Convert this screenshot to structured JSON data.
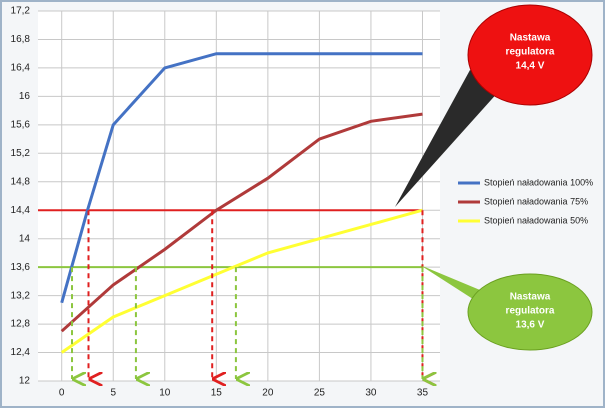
{
  "chart_data": {
    "type": "line",
    "xlim": [
      -2.3,
      36.7
    ],
    "xticks": [
      0,
      5,
      10,
      15,
      20,
      25,
      30,
      35
    ],
    "ylim": [
      12,
      17.2
    ],
    "yticks": [
      12,
      {
        "value": 12.4,
        "label": "12,4"
      },
      {
        "value": 12.8,
        "label": "12,8"
      },
      {
        "value": 13.2,
        "label": "13,2"
      },
      {
        "value": 13.6,
        "label": "13,6"
      },
      14,
      {
        "value": 14.4,
        "label": "14,4"
      },
      {
        "value": 14.8,
        "label": "14,8"
      },
      {
        "value": 15.2,
        "label": "15,2"
      },
      {
        "value": 15.6,
        "label": "15,6"
      },
      16,
      {
        "value": 16.4,
        "label": "16,4"
      },
      {
        "value": 16.8,
        "label": "16,8"
      },
      {
        "value": 17.2,
        "label": "17,2"
      }
    ],
    "grid": true,
    "series": [
      {
        "name": "Stopień naładowania 100%",
        "color": "#4472c4",
        "x": [
          0,
          2.5,
          5,
          10,
          15,
          20,
          25,
          30,
          35
        ],
        "values": [
          13.1,
          14.4,
          15.6,
          16.4,
          16.6,
          16.6,
          16.6,
          16.6,
          16.6
        ]
      },
      {
        "name": "Stopień naładowania 75%",
        "color": "#b03a3a",
        "x": [
          0,
          5,
          10,
          15,
          20,
          25,
          30,
          35
        ],
        "values": [
          12.7,
          13.35,
          13.85,
          14.4,
          14.85,
          15.4,
          15.65,
          15.75
        ]
      },
      {
        "name": "Stopień naładowania 50%",
        "color": "#ffff33",
        "x": [
          0,
          5,
          10,
          15,
          20,
          25,
          30,
          35
        ],
        "values": [
          12.4,
          12.9,
          13.2,
          13.5,
          13.8,
          14.0,
          14.2,
          14.4
        ]
      }
    ],
    "reference_lines": [
      {
        "value": 14.4,
        "color": "#e02020",
        "drops": [
          2.6,
          14.6,
          35
        ]
      },
      {
        "value": 13.6,
        "color": "#8cc63f",
        "drops": [
          1,
          7.2,
          16.9,
          35
        ]
      }
    ],
    "callouts": [
      {
        "lines": [
          "Nastawa",
          "regulatora",
          "14,4 V"
        ]
      },
      {
        "lines": [
          "Nastawa",
          "regulatora",
          "13,6 V"
        ]
      }
    ]
  }
}
